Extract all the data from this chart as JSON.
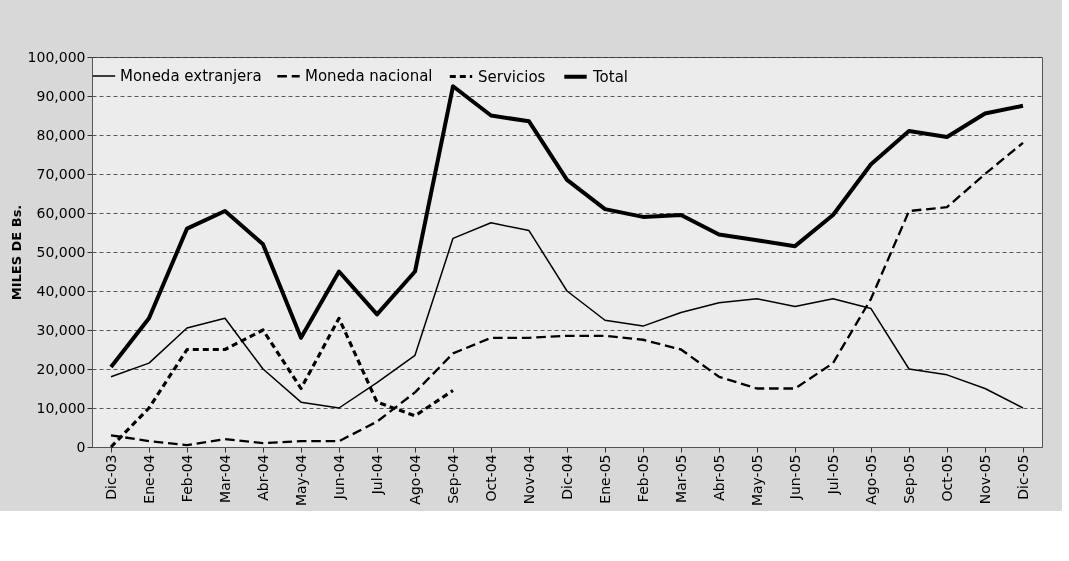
{
  "chart_data": {
    "type": "line",
    "categories": [
      "Dic-03",
      "Ene-04",
      "Feb-04",
      "Mar-04",
      "Abr-04",
      "May-04",
      "Jun-04",
      "Jul-04",
      "Ago-04",
      "Sep-04",
      "Oct-04",
      "Nov-04",
      "Dic-04",
      "Ene-05",
      "Feb-05",
      "Mar-05",
      "Abr-05",
      "May-05",
      "Jun-05",
      "Jul-05",
      "Ago-05",
      "Sep-05",
      "Oct-05",
      "Nov-05",
      "Dic-05"
    ],
    "series": [
      {
        "name": "Moneda extranjera",
        "color": "#000000",
        "line_style": "solid",
        "values": [
          18000,
          21500,
          30500,
          33000,
          20000,
          11500,
          10000,
          16500,
          23500,
          53500,
          57500,
          55500,
          40000,
          32500,
          31000,
          34500,
          37000,
          38000,
          36000,
          38000,
          35500,
          20000,
          18500,
          15000,
          10000
        ]
      },
      {
        "name": "Moneda nacional",
        "color": "#000000",
        "line_style": "dashed",
        "values": [
          3000,
          1500,
          500,
          2000,
          1000,
          1500,
          1500,
          6500,
          14000,
          24000,
          28000,
          28000,
          28500,
          28500,
          27500,
          25000,
          18000,
          15000,
          15000,
          21500,
          38000,
          60500,
          61500,
          70000,
          78000
        ]
      },
      {
        "name": "Servicios",
        "color": "#000000",
        "line_style": "dashed",
        "values": [
          0,
          10000,
          25000,
          25000,
          30000,
          15000,
          33000,
          11500,
          8000,
          14500,
          null,
          null,
          null,
          null,
          null,
          null,
          null,
          null,
          null,
          null,
          null,
          null,
          null,
          null,
          null
        ]
      },
      {
        "name": "Total",
        "color": "#000000",
        "line_style": "solid",
        "values": [
          20500,
          33000,
          56000,
          60500,
          52000,
          28000,
          45000,
          34000,
          45000,
          92500,
          85000,
          83500,
          68500,
          61000,
          59000,
          59500,
          54500,
          53000,
          51500,
          59500,
          72500,
          81000,
          79500,
          85500,
          87500
        ]
      }
    ],
    "ylabel": "MILES DE Bs.",
    "ylim": [
      0,
      100000
    ],
    "yticks": [
      0,
      {
        "value": 10000,
        "label": "10,000"
      },
      {
        "value": 20000,
        "label": "20,000"
      },
      {
        "value": 30000,
        "label": "30,000"
      },
      {
        "value": 40000,
        "label": "40,000"
      },
      {
        "value": 50000,
        "label": "50,000"
      },
      {
        "value": 60000,
        "label": "60,000"
      },
      {
        "value": 70000,
        "label": "70,000"
      },
      {
        "value": 80000,
        "label": "80,000"
      },
      {
        "value": 90000,
        "label": "90,000"
      },
      {
        "value": 100000,
        "label": "100,000"
      }
    ],
    "grid": "y",
    "legend": "top",
    "marker": "none"
  }
}
